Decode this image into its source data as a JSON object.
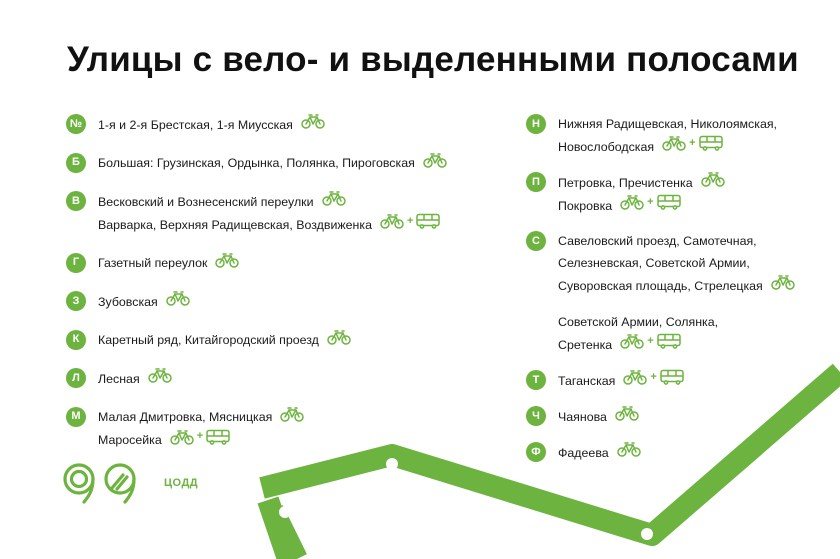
{
  "title": "Улицы с вело- и выделенными полосами",
  "colors": {
    "accent": "#6db33f",
    "text": "#1a1a1a"
  },
  "left_entries": [
    {
      "letter": "№",
      "lines": [
        {
          "text": "1-я и 2-я Брестская, 1-я Миусская",
          "icons": [
            "bike"
          ]
        }
      ]
    },
    {
      "letter": "Б",
      "lines": [
        {
          "text": "Большая: Грузинская, Ордынка, Полянка, Пироговская",
          "icons": [
            "bike"
          ]
        }
      ]
    },
    {
      "letter": "В",
      "lines": [
        {
          "text": "Весковский и Вознесенский переулки",
          "icons": [
            "bike"
          ]
        },
        {
          "text": "Варварка, Верхняя Радищевская, Воздвиженка",
          "icons": [
            "bike",
            "plus",
            "bus"
          ]
        }
      ]
    },
    {
      "letter": "Г",
      "lines": [
        {
          "text": "Газетный переулок",
          "icons": [
            "bike"
          ]
        }
      ]
    },
    {
      "letter": "З",
      "lines": [
        {
          "text": "Зубовская",
          "icons": [
            "bike"
          ]
        }
      ]
    },
    {
      "letter": "К",
      "lines": [
        {
          "text": "Каретный ряд, Китайгородский проезд",
          "icons": [
            "bike"
          ]
        }
      ]
    },
    {
      "letter": "Л",
      "lines": [
        {
          "text": "Лесная",
          "icons": [
            "bike"
          ]
        }
      ]
    },
    {
      "letter": "М",
      "lines": [
        {
          "text": "Малая Дмитровка, Мясницкая",
          "icons": [
            "bike"
          ]
        },
        {
          "text": "Маросейка",
          "icons": [
            "bike",
            "plus",
            "bus"
          ]
        }
      ]
    }
  ],
  "right_entries": [
    {
      "letter": "Н",
      "lines": [
        {
          "text": "Нижняя Радищевская, Николоямская,",
          "icons": []
        },
        {
          "text": "Новослободская",
          "icons": [
            "bike",
            "plus",
            "bus"
          ]
        }
      ]
    },
    {
      "letter": "П",
      "lines": [
        {
          "text": "Петровка, Пречистенка",
          "icons": [
            "bike"
          ]
        },
        {
          "text": "Покровка",
          "icons": [
            "bike",
            "plus",
            "bus"
          ]
        }
      ]
    },
    {
      "letter": "С",
      "lines": [
        {
          "text": "Савеловский проезд, Самотечная,",
          "icons": []
        },
        {
          "text": "Селезневская, Советской Армии,",
          "icons": []
        },
        {
          "text": "Суворовская площадь, Стрелецкая",
          "icons": [
            "bike"
          ]
        },
        {
          "text": "",
          "icons": []
        },
        {
          "text": "Советской Армии, Солянка,",
          "icons": []
        },
        {
          "text": "Сретенка",
          "icons": [
            "bike",
            "plus",
            "bus"
          ]
        }
      ]
    },
    {
      "letter": "Т",
      "lines": [
        {
          "text": "Таганская",
          "icons": [
            "bike",
            "plus",
            "bus"
          ]
        }
      ]
    },
    {
      "letter": "Ч",
      "lines": [
        {
          "text": "Чаянова",
          "icons": [
            "bike"
          ]
        }
      ]
    },
    {
      "letter": "Ф",
      "lines": [
        {
          "text": "Фадеева",
          "icons": [
            "bike"
          ]
        }
      ]
    }
  ],
  "logo": {
    "text": "ЦОДД",
    "icon": "codd-logo-icon"
  }
}
